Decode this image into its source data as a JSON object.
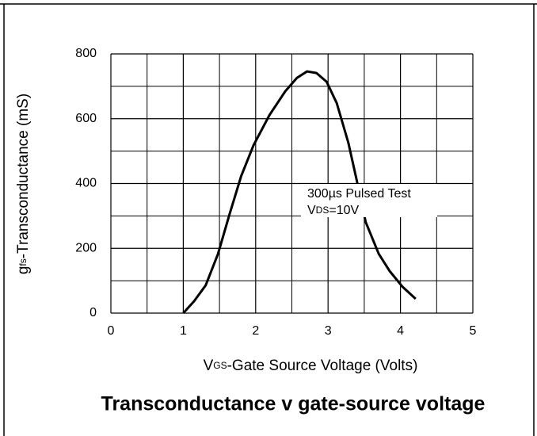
{
  "chart_data": {
    "type": "line",
    "title": "Transconductance v gate-source voltage",
    "x_label": {
      "symbol": "V",
      "subscript": "GS",
      "text": "-Gate Source Voltage (Volts)"
    },
    "y_label": {
      "symbol": "g",
      "subscript": "fs",
      "text": "-Transconductance (mS)"
    },
    "annotation": {
      "line1": "300µs Pulsed Test",
      "line2": {
        "symbol": "V",
        "subscript": "DS",
        "text": "=10V"
      }
    },
    "xlim": [
      0,
      5
    ],
    "ylim": [
      0,
      800
    ],
    "xticks": [
      0,
      1,
      2,
      3,
      4,
      5
    ],
    "yticks": [
      0,
      200,
      400,
      600,
      800
    ],
    "x_minor_ticks": [
      0.5,
      1.5,
      2.5,
      3.5,
      4.5
    ],
    "y_minor_ticks": [
      100,
      300,
      500,
      700
    ],
    "grid": true,
    "series": [
      {
        "color": "#000000",
        "x": [
          1.0,
          1.15,
          1.31,
          1.48,
          1.64,
          1.8,
          1.97,
          2.19,
          2.41,
          2.57,
          2.71,
          2.84,
          2.98,
          3.12,
          3.28,
          3.39,
          3.52,
          3.7,
          3.85,
          4.03,
          4.21
        ],
        "values": [
          0,
          37,
          86,
          183,
          306,
          423,
          518,
          611,
          685,
          726,
          746,
          741,
          714,
          648,
          526,
          416,
          281,
          183,
          130,
          81,
          44
        ]
      }
    ]
  }
}
